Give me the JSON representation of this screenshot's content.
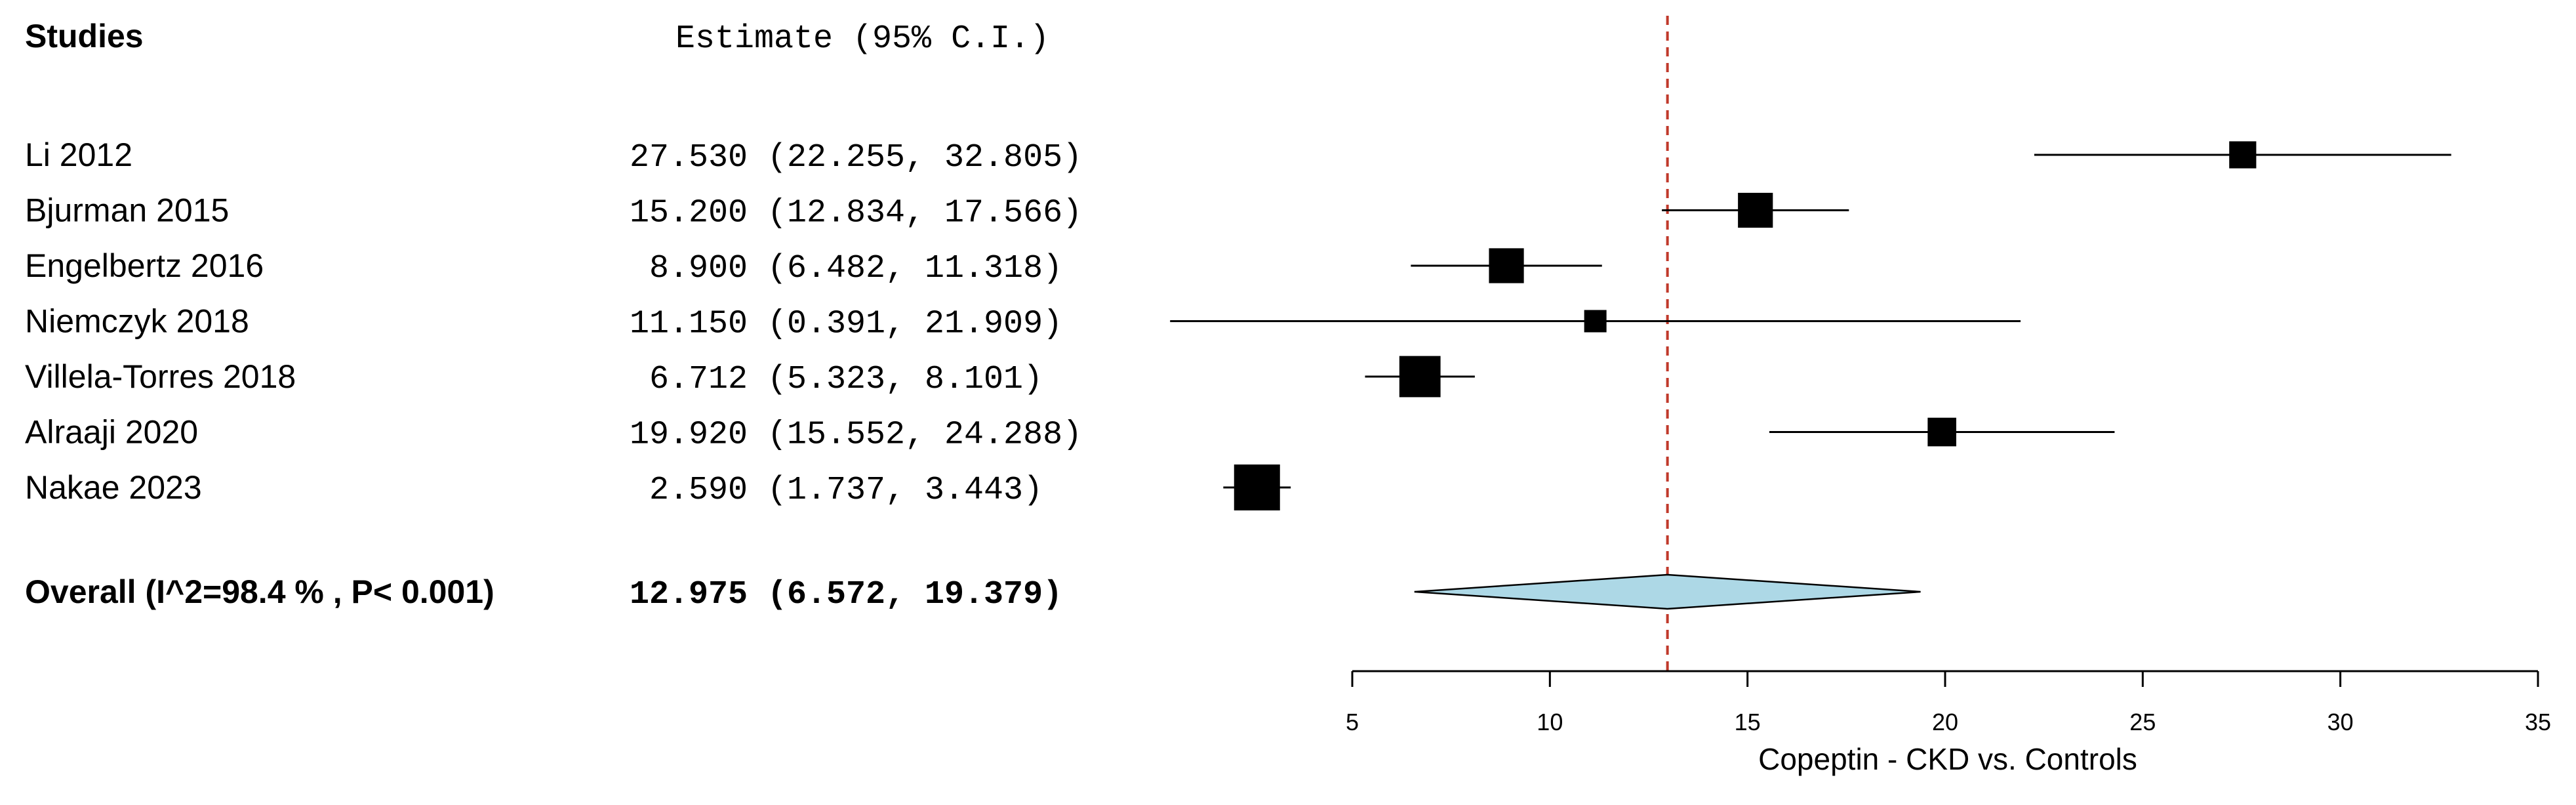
{
  "chart_data": {
    "type": "forest",
    "header": {
      "studies_label": "Studies",
      "estimate_label": "Estimate (95% C.I.)"
    },
    "studies": [
      {
        "name": "Li 2012",
        "estimate_text": "27.530",
        "ci_text": "(22.255, 32.805)",
        "estimate": 27.53,
        "lower": 22.255,
        "upper": 32.805,
        "weight": 0.4
      },
      {
        "name": "Bjurman 2015",
        "estimate_text": "15.200",
        "ci_text": "(12.834, 17.566)",
        "estimate": 15.2,
        "lower": 12.834,
        "upper": 17.566,
        "weight": 0.65
      },
      {
        "name": "Engelbertz 2016",
        "estimate_text": "8.900",
        "ci_text": "(6.482, 11.318)",
        "estimate": 8.9,
        "lower": 6.482,
        "upper": 11.318,
        "weight": 0.65
      },
      {
        "name": "Niemczyk 2018",
        "estimate_text": "11.150",
        "ci_text": "(0.391, 21.909)",
        "estimate": 11.15,
        "lower": 0.391,
        "upper": 21.909,
        "weight": 0.25
      },
      {
        "name": "Villela-Torres 2018",
        "estimate_text": "6.712",
        "ci_text": "(5.323, 8.101)",
        "estimate": 6.712,
        "lower": 5.323,
        "upper": 8.101,
        "weight": 0.85
      },
      {
        "name": "Alraaji 2020",
        "estimate_text": "19.920",
        "ci_text": "(15.552, 24.288)",
        "estimate": 19.92,
        "lower": 15.552,
        "upper": 24.288,
        "weight": 0.45
      },
      {
        "name": "Nakae 2023",
        "estimate_text": "2.590",
        "ci_text": "(1.737, 3.443)",
        "estimate": 2.59,
        "lower": 1.737,
        "upper": 3.443,
        "weight": 1.0
      }
    ],
    "overall": {
      "name": "Overall (I^2=98.4 % , P< 0.001)",
      "estimate_text": "12.975",
      "ci_text": "(6.572, 19.379)",
      "estimate": 12.975,
      "lower": 6.572,
      "upper": 19.379
    },
    "x_ticks": [
      5,
      10,
      15,
      20,
      25,
      30,
      35
    ],
    "x_tick_labels": [
      "5",
      "10",
      "15",
      "20",
      "25",
      "30",
      "35"
    ],
    "xlim": [
      5,
      35
    ],
    "xlabel": "Copeptin - CKD vs. Controls",
    "reference_line": 12.975,
    "colors": {
      "diamond_fill": "#add8e6",
      "reference_line": "#c0392b",
      "marker": "#000000"
    }
  }
}
